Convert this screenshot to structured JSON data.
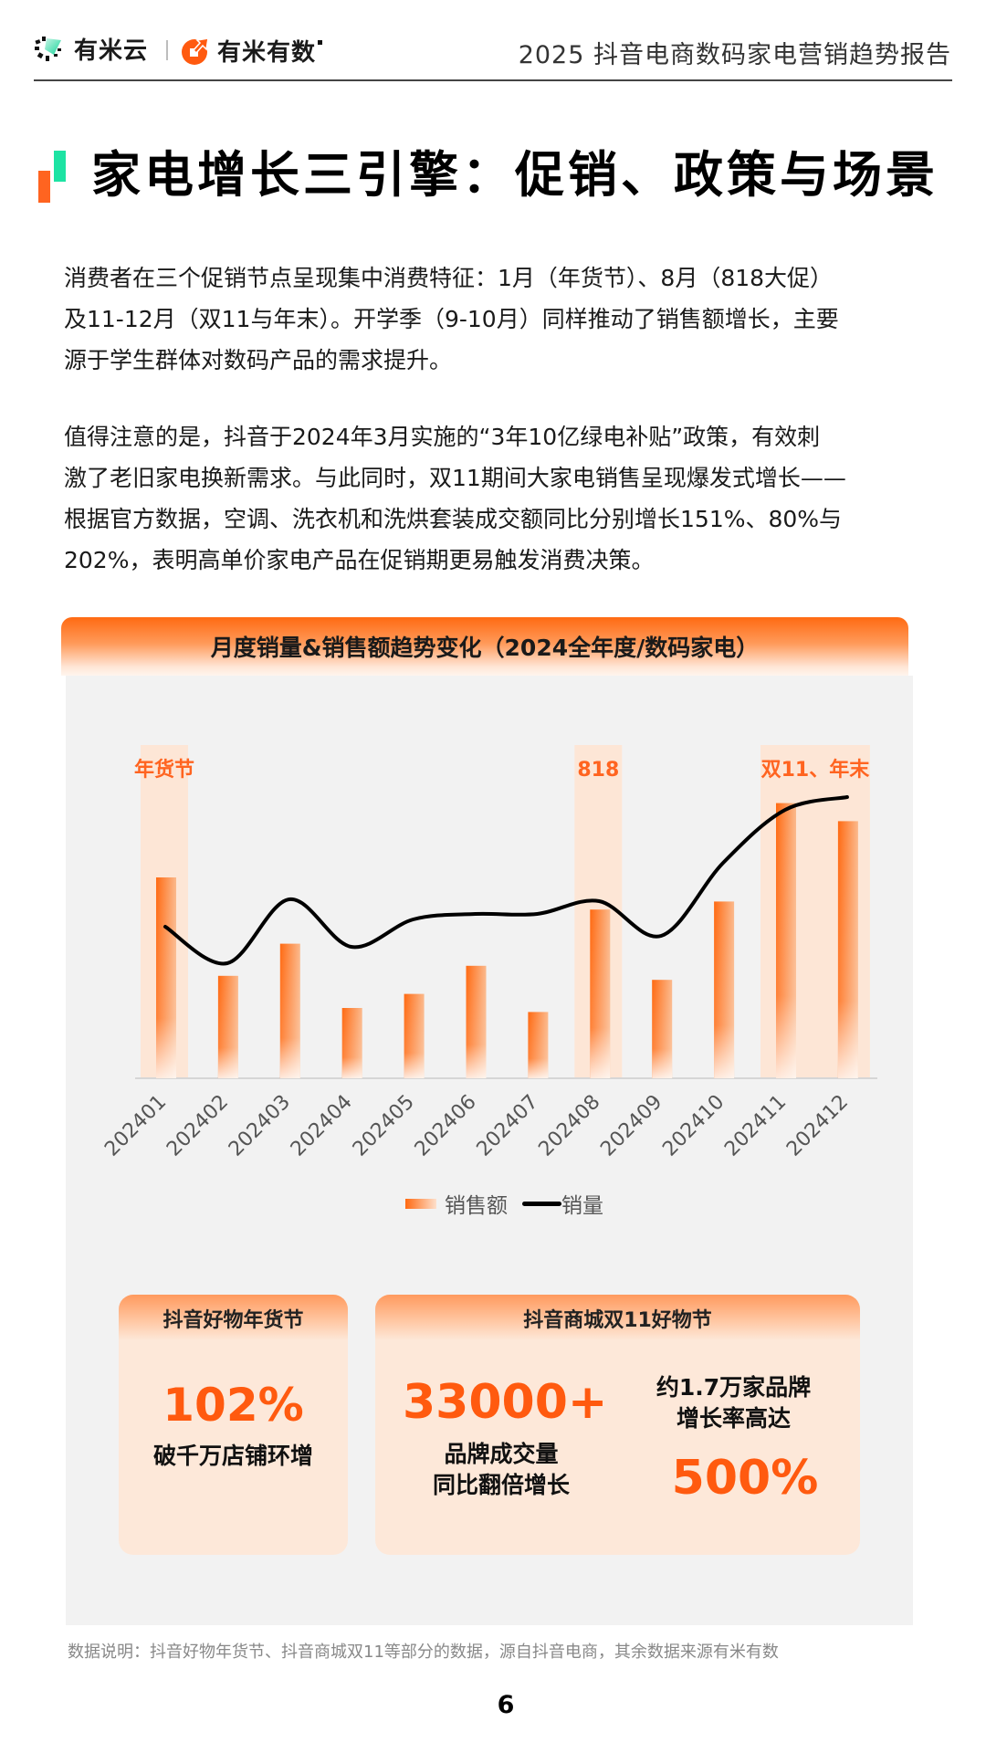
{
  "header": {
    "logo_left_text": "有米云",
    "logo_right_text": "有米有数",
    "report_title": "2025 抖音电商数码家电营销趋势报告"
  },
  "page_title": "家电增长三引擎：促销、政策与场景",
  "paragraphs": [
    [
      "消费者在三个促销节点呈现集中消费特征：1月（年货节）、8月（818大促）",
      "及11-12月（双11与年末）。开学季（9-10月）同样推动了销售额增长，主要",
      "源于学生群体对数码产品的需求提升。"
    ],
    [
      "值得注意的是，抖音于2024年3月实施的“3年10亿绿电补贴”政策，有效刺",
      "激了老旧家电换新需求。与此同时，双11期间大家电销售呈现爆发式增长——",
      "根据官方数据，空调、洗衣机和洗烘套装成交额同比分别增长151%、80%与",
      "202%，表明高单价家电产品在促销期更易触发消费决策。"
    ]
  ],
  "chart_data": {
    "type": "bar+line",
    "title": "月度销量&销售额趋势变化（2024全年度/数码家电）",
    "categories": [
      "202401",
      "202402",
      "202403",
      "202404",
      "202405",
      "202406",
      "202407",
      "202408",
      "202409",
      "202410",
      "202411",
      "202412"
    ],
    "series": [
      {
        "name": "销售额",
        "type": "bar",
        "values": [
          100,
          51,
          67,
          35,
          42,
          56,
          33,
          84,
          49,
          88,
          137,
          128
        ]
      },
      {
        "name": "销量",
        "type": "line",
        "values": [
          83,
          63,
          98,
          72,
          87,
          90,
          90,
          97,
          78,
          118,
          147,
          154
        ]
      }
    ],
    "units": "relative (no axis values shown)",
    "xlabel": "",
    "ylabel": "",
    "grid": false,
    "legend_position": "bottom",
    "annotations": [
      {
        "label": "年货节",
        "categories": [
          "202401"
        ]
      },
      {
        "label": "818",
        "categories": [
          "202408"
        ]
      },
      {
        "label": "双11、年末",
        "categories": [
          "202411",
          "202412"
        ]
      }
    ]
  },
  "chart": {
    "legend": {
      "bar_label": "销售额",
      "line_label": "销量"
    }
  },
  "cards": [
    {
      "title": "抖音好物年货节",
      "value": "102%",
      "desc": "破千万店铺环增"
    },
    {
      "title": "抖音商城双11好物节",
      "value": "33000+",
      "desc_lines": [
        "品牌成交量",
        "同比翻倍增长"
      ],
      "side_lines": [
        "约1.7万家品牌",
        "增长率高达"
      ],
      "side_value": "500%"
    }
  ],
  "footnote": "数据说明：抖音好物年货节、抖音商城双11等部分的数据，源自抖音电商，其余数据来源有米有数",
  "page_number": "6",
  "colors": {
    "accent_orange": "#ff5a0f",
    "accent_green": "#1de3a3",
    "band_highlight": "#fde6d6",
    "panel_bg": "#f2f2f2"
  }
}
